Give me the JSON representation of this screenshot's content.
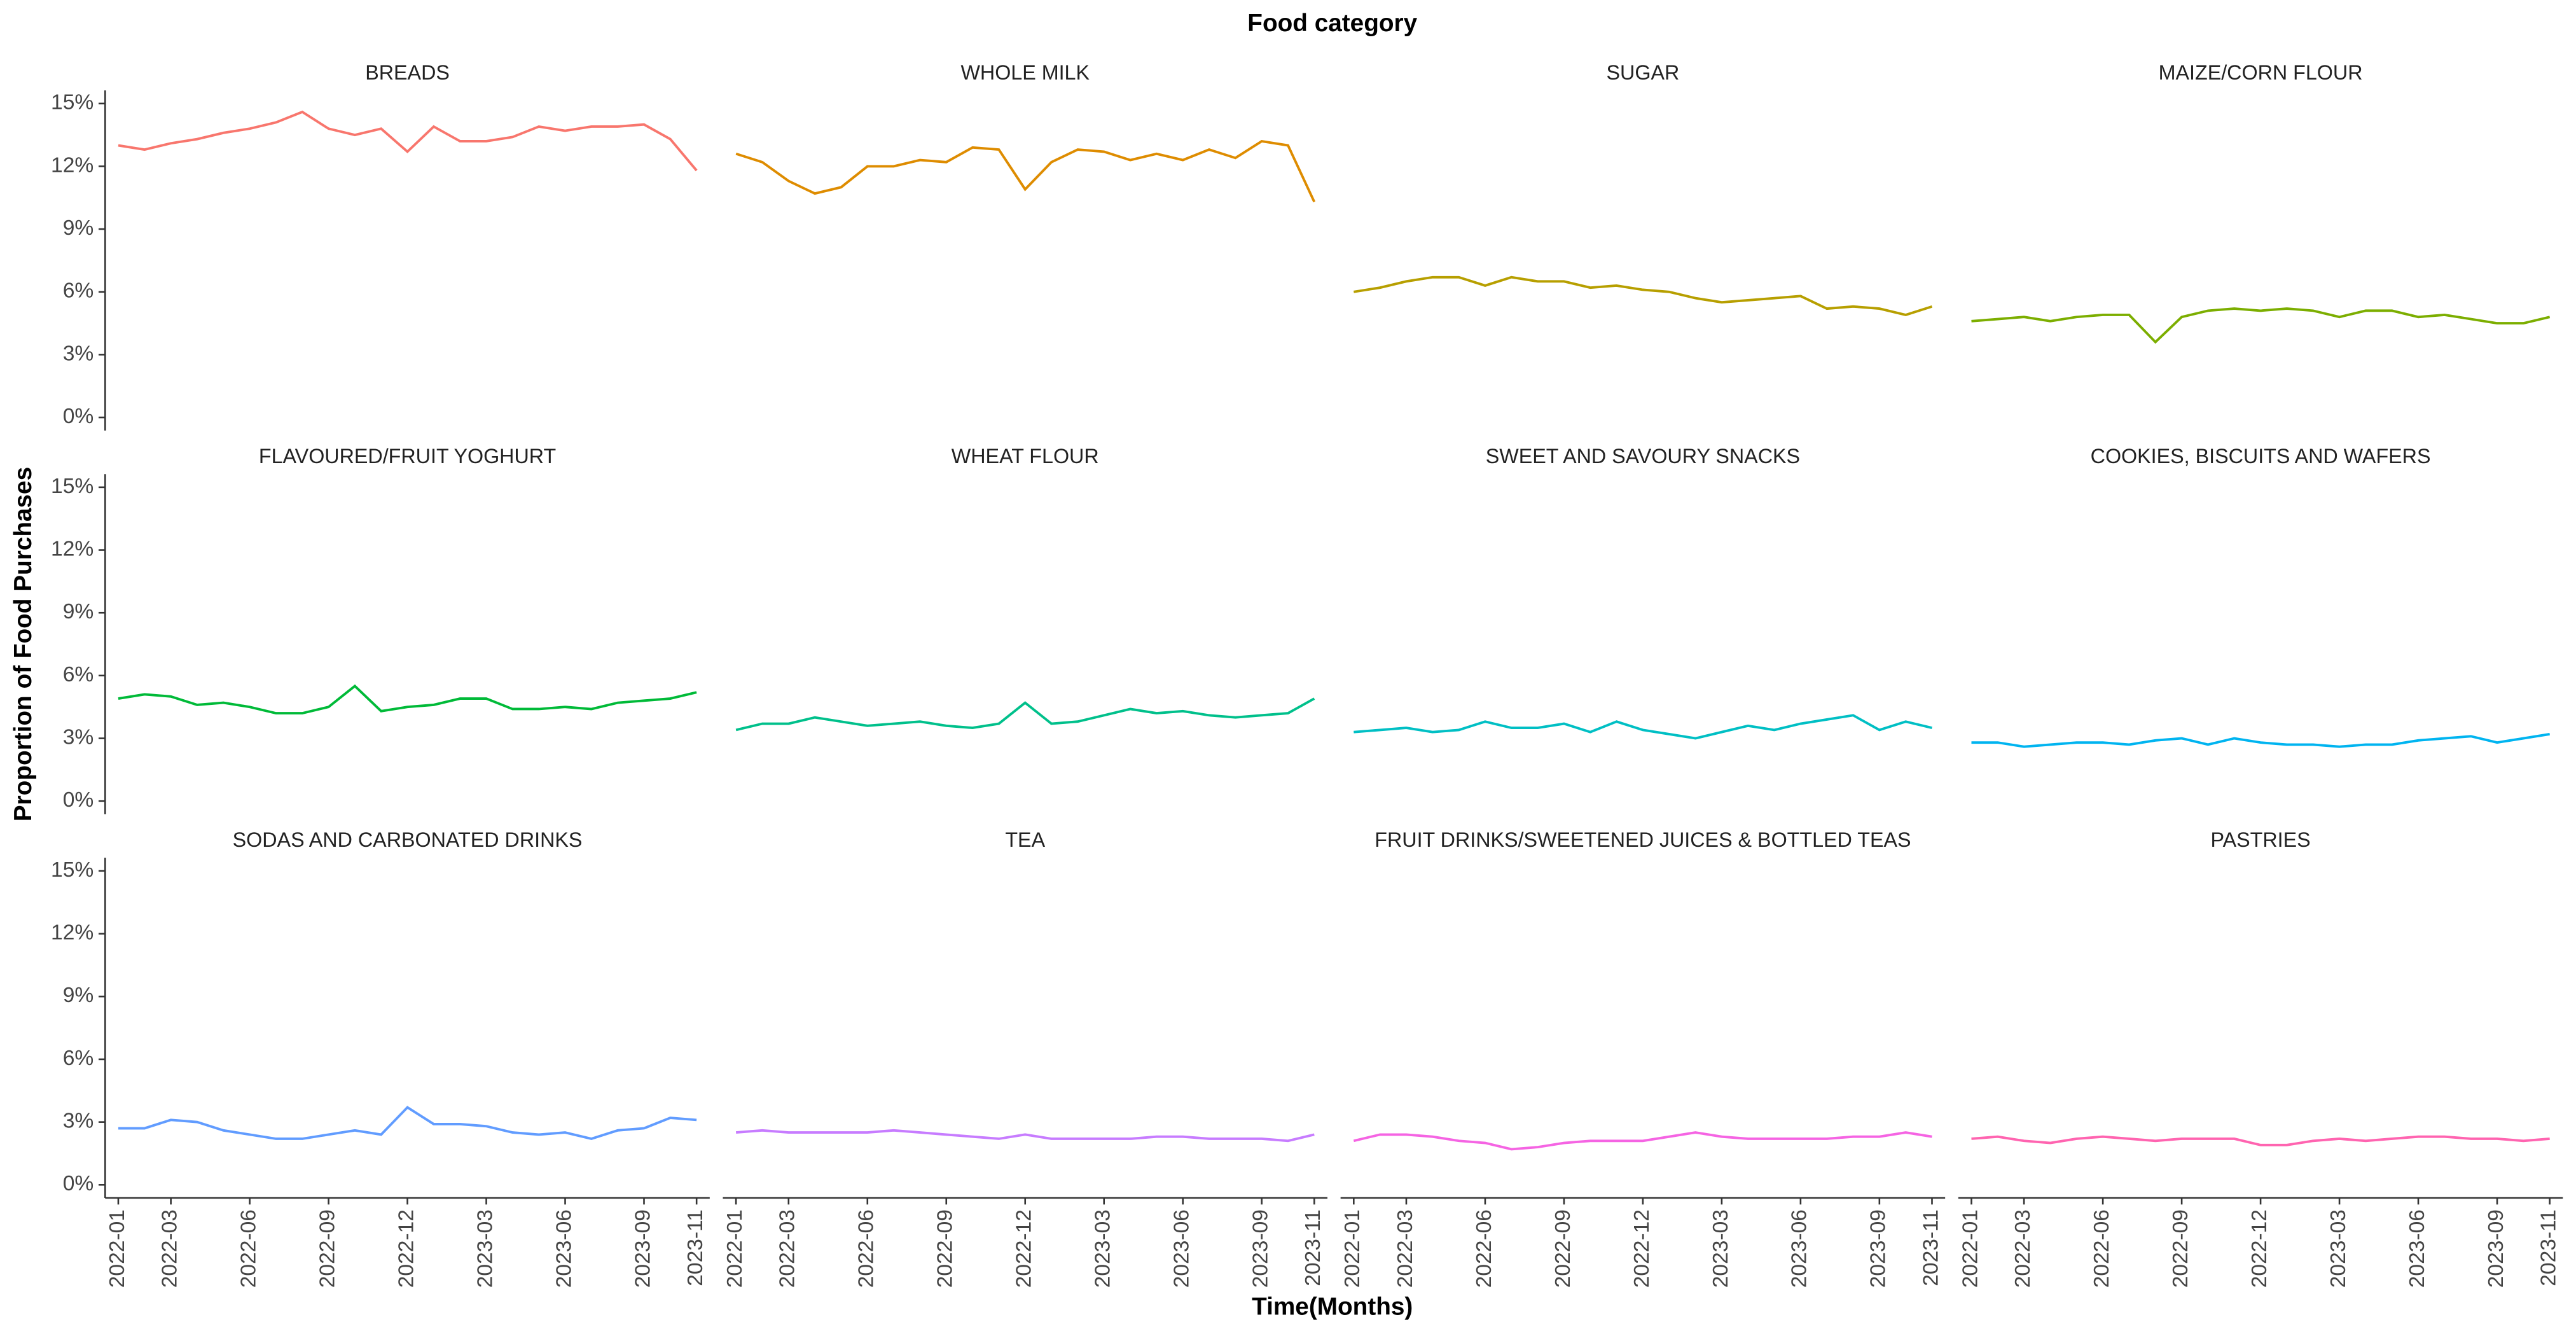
{
  "chart_data": {
    "type": "line",
    "title": "Food category",
    "x_label": "Time(Months)",
    "y_label": "Proportion of Food Purchases",
    "x": [
      "2022-01",
      "2022-02",
      "2022-03",
      "2022-04",
      "2022-05",
      "2022-06",
      "2022-07",
      "2022-08",
      "2022-09",
      "2022-10",
      "2022-11",
      "2022-12",
      "2023-01",
      "2023-02",
      "2023-03",
      "2023-04",
      "2023-05",
      "2023-06",
      "2023-07",
      "2023-08",
      "2023-09",
      "2023-10",
      "2023-11"
    ],
    "xticks": [
      "2022-01",
      "2022-03",
      "2022-06",
      "2022-09",
      "2022-12",
      "2023-03",
      "2023-06",
      "2023-09",
      "2023-11"
    ],
    "ylim": [
      0,
      15
    ],
    "yticks": [
      {
        "value": 0,
        "label": "0%"
      },
      {
        "value": 3,
        "label": "3%"
      },
      {
        "value": 6,
        "label": "6%"
      },
      {
        "value": 9,
        "label": "9%"
      },
      {
        "value": 12,
        "label": "12%"
      },
      {
        "value": 15,
        "label": "15%"
      }
    ],
    "series": [
      {
        "name": "BREADS",
        "color": "#F8766D",
        "values": [
          13.0,
          12.8,
          13.1,
          13.3,
          13.6,
          13.8,
          14.1,
          14.6,
          13.8,
          13.5,
          13.8,
          12.7,
          13.9,
          13.2,
          13.2,
          13.4,
          13.9,
          13.7,
          13.9,
          13.9,
          14.0,
          13.3,
          11.8
        ]
      },
      {
        "name": "WHOLE MILK",
        "color": "#DE8C00",
        "values": [
          12.6,
          12.2,
          11.3,
          10.7,
          11.0,
          12.0,
          12.0,
          12.3,
          12.2,
          12.9,
          12.8,
          10.9,
          12.2,
          12.8,
          12.7,
          12.3,
          12.6,
          12.3,
          12.8,
          12.4,
          13.2,
          13.0,
          10.3
        ]
      },
      {
        "name": "SUGAR",
        "color": "#B79F00",
        "values": [
          6.0,
          6.2,
          6.5,
          6.7,
          6.7,
          6.3,
          6.7,
          6.5,
          6.5,
          6.2,
          6.3,
          6.1,
          6.0,
          5.7,
          5.5,
          5.6,
          5.7,
          5.8,
          5.2,
          5.3,
          5.2,
          4.9,
          5.3
        ]
      },
      {
        "name": "MAIZE/CORN FLOUR",
        "color": "#7CAE00",
        "values": [
          4.6,
          4.7,
          4.8,
          4.6,
          4.8,
          4.9,
          4.9,
          3.6,
          4.8,
          5.1,
          5.2,
          5.1,
          5.2,
          5.1,
          4.8,
          5.1,
          5.1,
          4.8,
          4.9,
          4.7,
          4.5,
          4.5,
          4.8
        ]
      },
      {
        "name": "FLAVOURED/FRUIT YOGHURT",
        "color": "#00BA38",
        "values": [
          4.9,
          5.1,
          5.0,
          4.6,
          4.7,
          4.5,
          4.2,
          4.2,
          4.5,
          5.5,
          4.3,
          4.5,
          4.6,
          4.9,
          4.9,
          4.4,
          4.4,
          4.5,
          4.4,
          4.7,
          4.8,
          4.9,
          5.2
        ]
      },
      {
        "name": "WHEAT FLOUR",
        "color": "#00C08B",
        "values": [
          3.4,
          3.7,
          3.7,
          4.0,
          3.8,
          3.6,
          3.7,
          3.8,
          3.6,
          3.5,
          3.7,
          4.7,
          3.7,
          3.8,
          4.1,
          4.4,
          4.2,
          4.3,
          4.1,
          4.0,
          4.1,
          4.2,
          4.9
        ]
      },
      {
        "name": "SWEET AND SAVOURY SNACKS",
        "color": "#00BFC4",
        "values": [
          3.3,
          3.4,
          3.5,
          3.3,
          3.4,
          3.8,
          3.5,
          3.5,
          3.7,
          3.3,
          3.8,
          3.4,
          3.2,
          3.0,
          3.3,
          3.6,
          3.4,
          3.7,
          3.9,
          4.1,
          3.4,
          3.8,
          3.5
        ]
      },
      {
        "name": "COOKIES, BISCUITS AND WAFERS",
        "color": "#00B4F0",
        "values": [
          2.8,
          2.8,
          2.6,
          2.7,
          2.8,
          2.8,
          2.7,
          2.9,
          3.0,
          2.7,
          3.0,
          2.8,
          2.7,
          2.7,
          2.6,
          2.7,
          2.7,
          2.9,
          3.0,
          3.1,
          2.8,
          3.0,
          3.2
        ]
      },
      {
        "name": "SODAS AND CARBONATED DRINKS",
        "color": "#619CFF",
        "values": [
          2.7,
          2.7,
          3.1,
          3.0,
          2.6,
          2.4,
          2.2,
          2.2,
          2.4,
          2.6,
          2.4,
          3.7,
          2.9,
          2.9,
          2.8,
          2.5,
          2.4,
          2.5,
          2.2,
          2.6,
          2.7,
          3.2,
          3.1
        ]
      },
      {
        "name": "TEA",
        "color": "#C77CFF",
        "values": [
          2.5,
          2.6,
          2.5,
          2.5,
          2.5,
          2.5,
          2.6,
          2.5,
          2.4,
          2.3,
          2.2,
          2.4,
          2.2,
          2.2,
          2.2,
          2.2,
          2.3,
          2.3,
          2.2,
          2.2,
          2.2,
          2.1,
          2.4
        ]
      },
      {
        "name": "FRUIT DRINKS/SWEETENED JUICES & BOTTLED TEAS",
        "color": "#F564E3",
        "values": [
          2.1,
          2.4,
          2.4,
          2.3,
          2.1,
          2.0,
          1.7,
          1.8,
          2.0,
          2.1,
          2.1,
          2.1,
          2.3,
          2.5,
          2.3,
          2.2,
          2.2,
          2.2,
          2.2,
          2.3,
          2.3,
          2.5,
          2.3
        ]
      },
      {
        "name": "PASTRIES",
        "color": "#FF64B0",
        "values": [
          2.2,
          2.3,
          2.1,
          2.0,
          2.2,
          2.3,
          2.2,
          2.1,
          2.2,
          2.2,
          2.2,
          1.9,
          1.9,
          2.1,
          2.2,
          2.1,
          2.2,
          2.3,
          2.3,
          2.2,
          2.2,
          2.1,
          2.2
        ]
      }
    ]
  }
}
